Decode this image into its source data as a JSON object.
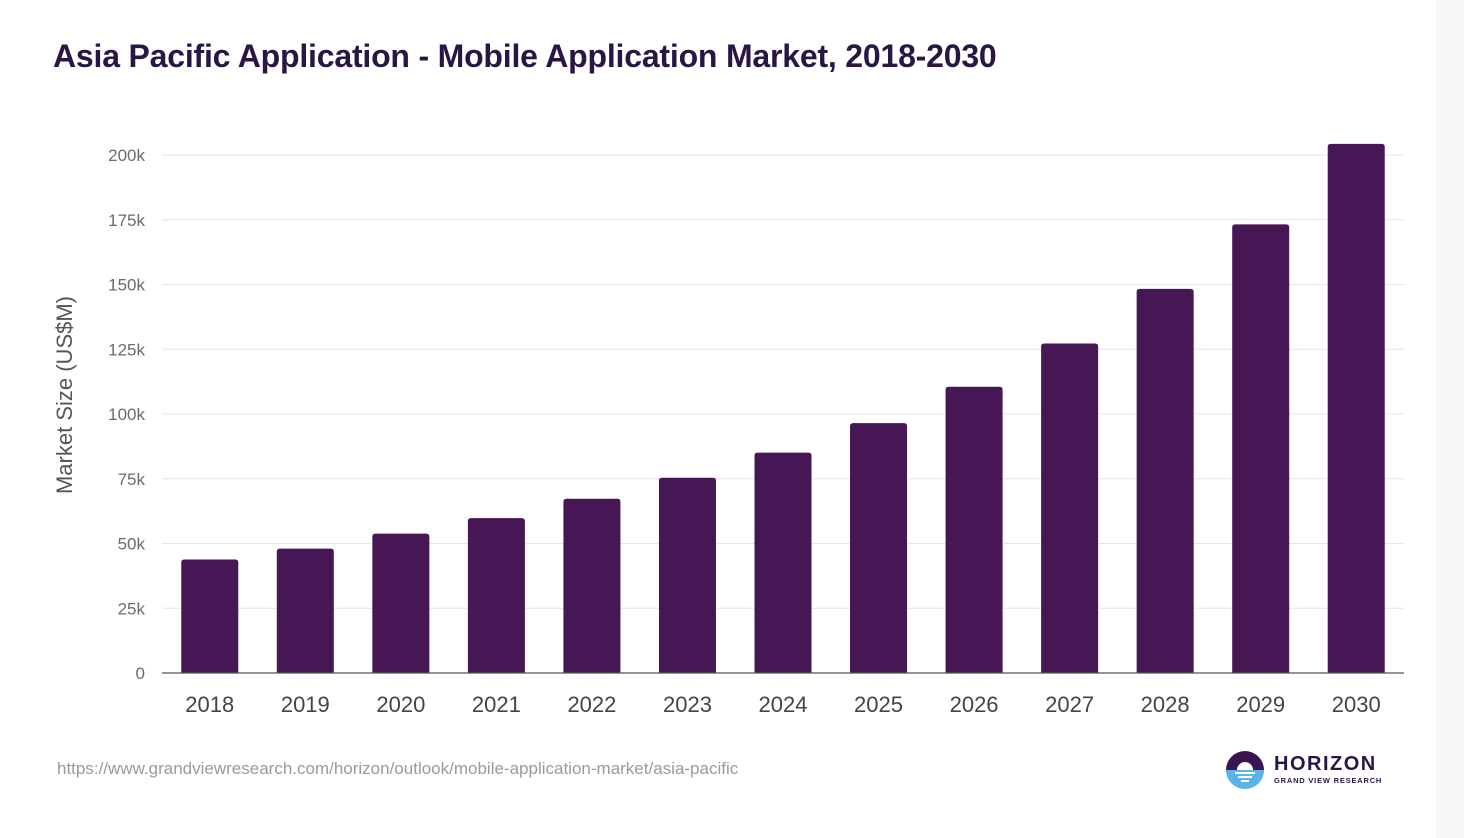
{
  "header": {
    "title": "Asia Pacific Application - Mobile Application Market, 2018-2030"
  },
  "footer": {
    "source_url": "https://www.grandviewresearch.com/horizon/outlook/mobile-application-market/asia-pacific",
    "logo_name": "HORIZON",
    "logo_sub": "GRAND VIEW RESEARCH"
  },
  "colors": {
    "bar": "#461655",
    "title": "#2a1645",
    "grid": "#e6e6e6",
    "axis": "#555555"
  },
  "chart_data": {
    "type": "bar",
    "title": "Asia Pacific Application - Mobile Application Market, 2018-2030",
    "xlabel": "",
    "ylabel": "Market Size (US$M)",
    "categories": [
      "2018",
      "2019",
      "2020",
      "2021",
      "2022",
      "2023",
      "2024",
      "2025",
      "2026",
      "2027",
      "2028",
      "2029",
      "2030"
    ],
    "values": [
      43800,
      48000,
      53800,
      59800,
      67300,
      75400,
      85100,
      96500,
      110500,
      127200,
      148300,
      173200,
      204300
    ],
    "ylim": [
      0,
      200000
    ],
    "yticks": [
      0,
      25000,
      50000,
      75000,
      100000,
      125000,
      150000,
      175000,
      200000
    ],
    "ytick_labels": [
      "0",
      "25k",
      "50k",
      "75k",
      "100k",
      "125k",
      "150k",
      "175k",
      "200k"
    ],
    "grid": true,
    "legend": "none"
  }
}
